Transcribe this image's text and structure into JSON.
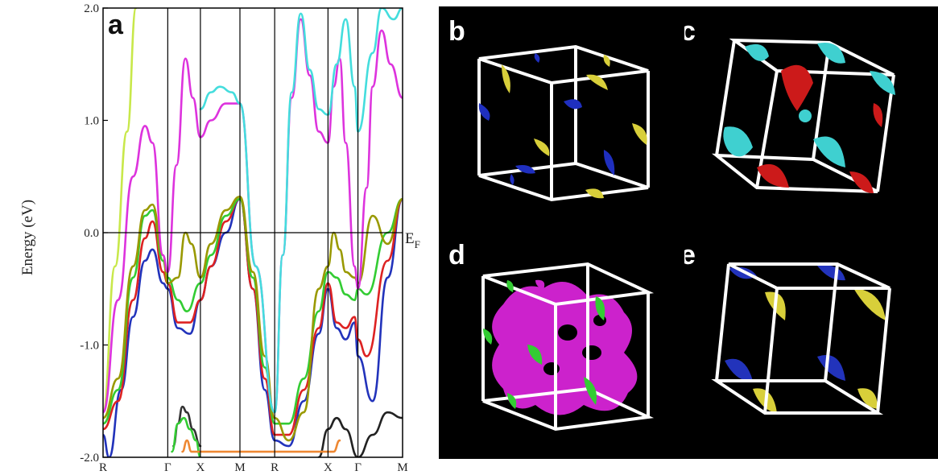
{
  "figure": {
    "panels": {
      "a": "a",
      "b": "b",
      "c": "c",
      "d": "d",
      "e": "e"
    }
  },
  "chart_data": {
    "type": "line",
    "ylabel": "Energy (eV)",
    "ylim": [
      -2.0,
      2.0
    ],
    "yticks": [
      "2.0",
      "1.0",
      "0.0",
      "-1.0",
      "-2.0"
    ],
    "fermi_label": "E",
    "fermi_sub": "F",
    "k_labels": [
      "R",
      "Γ",
      "X",
      "M",
      "R",
      "X",
      "Γ",
      "M"
    ],
    "k_positions": [
      0.0,
      0.216,
      0.325,
      0.457,
      0.573,
      0.751,
      0.851,
      1.0
    ],
    "xlim": [
      0,
      1
    ],
    "series": [
      {
        "color": "#c8e84a",
        "x": [
          0.0,
          0.04,
          0.08,
          0.11
        ],
        "y": [
          -1.6,
          -0.3,
          0.9,
          2.0
        ]
      },
      {
        "color": "#2233bb",
        "x": [
          0.0,
          0.02,
          0.06,
          0.1,
          0.14,
          0.165,
          0.2,
          0.216,
          0.25,
          0.29,
          0.325,
          0.36,
          0.41,
          0.457,
          0.5,
          0.54,
          0.573,
          0.62,
          0.67,
          0.72,
          0.751,
          0.78,
          0.81,
          0.84,
          0.851,
          0.9,
          0.95,
          1.0
        ],
        "y": [
          -1.8,
          -2.0,
          -1.4,
          -0.75,
          -0.25,
          -0.15,
          -0.45,
          -0.5,
          -0.85,
          -0.9,
          -0.6,
          -0.3,
          0.0,
          0.3,
          -0.5,
          -1.4,
          -1.85,
          -1.9,
          -1.5,
          -0.9,
          -0.5,
          -0.85,
          -0.95,
          -0.8,
          -1.1,
          -1.5,
          -0.4,
          0.3
        ]
      },
      {
        "color": "#dd2222",
        "x": [
          0.0,
          0.05,
          0.1,
          0.14,
          0.165,
          0.2,
          0.216,
          0.25,
          0.29,
          0.325,
          0.36,
          0.41,
          0.457,
          0.5,
          0.54,
          0.573,
          0.62,
          0.67,
          0.72,
          0.751,
          0.78,
          0.81,
          0.84,
          0.851,
          0.88,
          0.95,
          1.0
        ],
        "y": [
          -1.75,
          -1.5,
          -0.6,
          -0.05,
          0.1,
          -0.35,
          -0.45,
          -0.8,
          -0.8,
          -0.6,
          -0.3,
          0.1,
          0.3,
          -0.5,
          -1.3,
          -1.8,
          -1.8,
          -1.4,
          -0.85,
          -0.45,
          -0.8,
          -0.85,
          -0.75,
          -0.95,
          -1.1,
          -0.25,
          0.3
        ]
      },
      {
        "color": "#33cc33",
        "x": [
          0.0,
          0.05,
          0.1,
          0.14,
          0.165,
          0.2,
          0.216,
          0.25,
          0.28,
          0.325,
          0.36,
          0.41,
          0.457,
          0.5,
          0.54,
          0.573,
          0.62,
          0.67,
          0.72,
          0.751,
          0.78,
          0.81,
          0.84,
          0.851,
          0.88,
          0.95,
          1.0
        ],
        "y": [
          -1.7,
          -1.4,
          -0.4,
          0.15,
          0.2,
          -0.25,
          -0.4,
          -0.6,
          -0.7,
          -0.45,
          -0.2,
          0.15,
          0.3,
          -0.4,
          -1.2,
          -1.7,
          -1.7,
          -1.3,
          -0.7,
          -0.35,
          -0.4,
          -0.55,
          -0.6,
          -0.5,
          -0.55,
          0.0,
          0.3
        ]
      },
      {
        "color": "#999900",
        "x": [
          0.0,
          0.05,
          0.1,
          0.14,
          0.165,
          0.2,
          0.216,
          0.25,
          0.275,
          0.295,
          0.325,
          0.36,
          0.41,
          0.457,
          0.5,
          0.54,
          0.573,
          0.62,
          0.67,
          0.72,
          0.751,
          0.77,
          0.79,
          0.81,
          0.84,
          0.851,
          0.9,
          0.95,
          1.0
        ],
        "y": [
          -1.65,
          -1.3,
          -0.3,
          0.2,
          0.25,
          -0.2,
          -0.45,
          -0.4,
          0.0,
          -0.1,
          -0.4,
          -0.1,
          0.2,
          0.32,
          -0.35,
          -1.1,
          -1.65,
          -1.85,
          -1.6,
          -0.5,
          -0.3,
          0.0,
          -0.15,
          -0.35,
          -0.4,
          -0.45,
          0.15,
          -0.1,
          0.3
        ]
      },
      {
        "color": "#dd33dd",
        "x": [
          0.0,
          0.05,
          0.1,
          0.14,
          0.165,
          0.2,
          0.216,
          0.245,
          0.275,
          0.3,
          0.325,
          0.36,
          0.41,
          0.457,
          0.51,
          0.573,
          0.6,
          0.63,
          0.66,
          0.69,
          0.72,
          0.751,
          0.77,
          0.79,
          0.81,
          0.84,
          0.851,
          0.88,
          0.9,
          0.93,
          0.96,
          1.0
        ],
        "y": [
          -1.6,
          -0.6,
          0.5,
          0.95,
          0.8,
          -0.2,
          -0.35,
          0.6,
          1.55,
          1.2,
          0.85,
          1.0,
          1.15,
          1.15,
          -0.3,
          -1.6,
          -0.2,
          1.2,
          1.9,
          1.4,
          0.9,
          0.8,
          1.3,
          1.55,
          0.8,
          -0.3,
          -0.5,
          0.4,
          1.3,
          1.8,
          1.5,
          1.2
        ]
      },
      {
        "color": "#44dddd",
        "x": [
          0.325,
          0.36,
          0.39,
          0.43,
          0.457,
          0.51,
          0.573,
          0.6,
          0.63,
          0.66,
          0.69,
          0.72,
          0.751,
          0.78,
          0.81,
          0.84,
          0.851,
          0.9,
          0.93,
          0.97,
          1.0
        ],
        "y": [
          1.1,
          1.25,
          1.3,
          1.25,
          1.15,
          -0.3,
          -1.6,
          -0.2,
          1.25,
          1.95,
          1.45,
          1.1,
          1.05,
          1.5,
          1.9,
          1.3,
          0.9,
          1.6,
          2.0,
          1.9,
          2.0
        ]
      },
      {
        "color": "#222222",
        "x": [
          0.72,
          0.751,
          0.78,
          0.81,
          0.851,
          0.9,
          0.95,
          1.0
        ],
        "y": [
          -2.0,
          -1.75,
          -1.65,
          -1.75,
          -2.0,
          -1.8,
          -1.6,
          -1.65
        ]
      },
      {
        "color": "#333333",
        "x": [
          0.235,
          0.25,
          0.265,
          0.28,
          0.3,
          0.325
        ],
        "y": [
          -1.9,
          -1.7,
          -1.55,
          -1.6,
          -1.75,
          -1.9
        ]
      },
      {
        "color": "#33cc33",
        "x": [
          0.23,
          0.25,
          0.27,
          0.29,
          0.31,
          0.325
        ],
        "y": [
          -1.95,
          -1.7,
          -1.65,
          -1.75,
          -1.85,
          -2.0
        ]
      },
      {
        "color": "#ee8833",
        "x": [
          0.265,
          0.28,
          0.295,
          0.77,
          0.79
        ],
        "y": [
          -1.95,
          -1.85,
          -1.95,
          -1.95,
          -1.85
        ]
      }
    ]
  },
  "fermi_surfaces": [
    {
      "panel": "b",
      "colors": [
        "#1f2fbf",
        "#d8cf3a"
      ]
    },
    {
      "panel": "c",
      "colors": [
        "#3fd0d0",
        "#cc1a1a"
      ]
    },
    {
      "panel": "d",
      "colors": [
        "#cc22cc",
        "#33cc33"
      ]
    },
    {
      "panel": "e",
      "colors": [
        "#2233bb",
        "#d8cf3a"
      ]
    }
  ]
}
